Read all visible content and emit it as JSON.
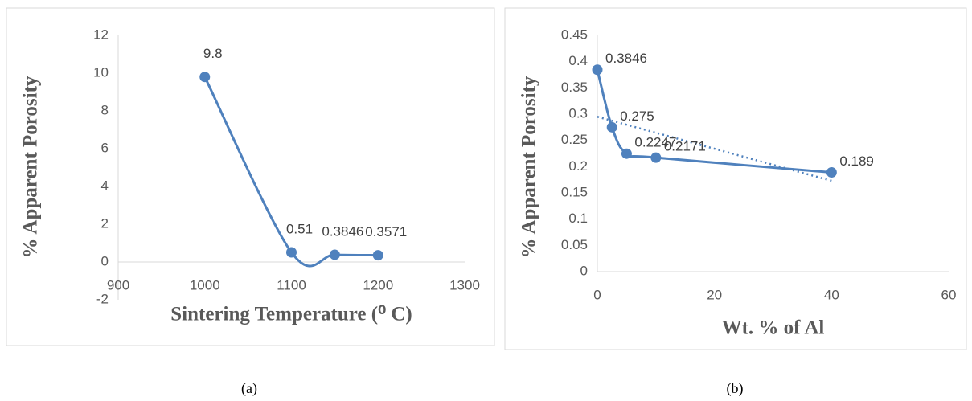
{
  "chart_data": [
    {
      "type": "line",
      "caption": "(a)",
      "x_label": "Sintering Temperature (⁰ C)",
      "y_label": "% Apparent Porosity",
      "x": [
        1000,
        1100,
        1150,
        1200
      ],
      "series": [
        {
          "color": "#4f81bd",
          "values": [
            9.8,
            0.51,
            0.3846,
            0.3571
          ]
        }
      ],
      "xlim": [
        900,
        1300
      ],
      "xticks": [
        900,
        1000,
        1100,
        1200,
        1300
      ],
      "ylim": [
        -2,
        12
      ],
      "yticks": [
        -2,
        0,
        2,
        4,
        6,
        8,
        10,
        12
      ],
      "smooth": true,
      "grid": false
    },
    {
      "type": "line",
      "caption": "(b)",
      "x_label": "Wt. % of Al",
      "y_label": "% Apparent Porosity",
      "x": [
        0,
        2.5,
        5,
        10,
        40
      ],
      "series": [
        {
          "color": "#4f81bd",
          "values": [
            0.3846,
            0.275,
            0.2247,
            0.2171,
            0.189
          ]
        }
      ],
      "trendline": {
        "x": [
          0,
          40
        ],
        "values": [
          0.295,
          0.173
        ]
      },
      "xlim": [
        0,
        60
      ],
      "xticks": [
        0,
        20,
        40,
        60
      ],
      "ylim": [
        0,
        0.45
      ],
      "yticks": [
        0,
        0.05,
        0.1,
        0.15,
        0.2,
        0.25,
        0.3,
        0.35,
        0.4,
        0.45
      ],
      "smooth": true,
      "grid": false
    }
  ]
}
